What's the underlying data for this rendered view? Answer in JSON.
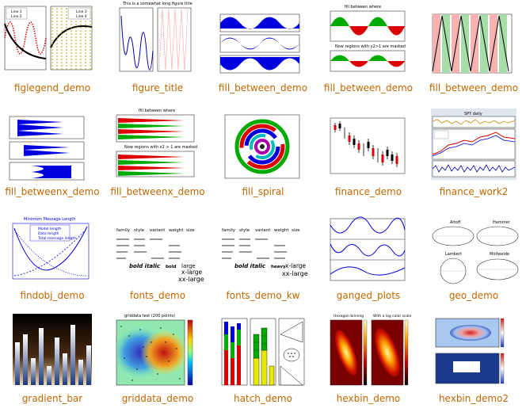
{
  "accent_color": "#c06800",
  "items": [
    {
      "caption": "figlegend_demo",
      "thumb_texts": [
        "Line 1",
        "Line 2",
        "Line 3",
        "Line 4"
      ]
    },
    {
      "caption": "figure_title",
      "thumb_texts": [
        "This is a somewhat long figure title"
      ]
    },
    {
      "caption": "fill_between_demo",
      "thumb_texts": []
    },
    {
      "caption": "fill_between_demo",
      "thumb_texts": [
        "fill between where",
        "Now regions with y2>1 are masked"
      ]
    },
    {
      "caption": "fill_between_demo",
      "thumb_texts": []
    },
    {
      "caption": "fill_betweenx_demo",
      "thumb_texts": []
    },
    {
      "caption": "fill_betweenx_demo",
      "thumb_texts": [
        "fill between where",
        "Now regions with x2 > 1 are masked"
      ]
    },
    {
      "caption": "fill_spiral",
      "thumb_texts": []
    },
    {
      "caption": "finance_demo",
      "thumb_texts": []
    },
    {
      "caption": "finance_work2",
      "thumb_texts": [
        "SPY daily"
      ]
    },
    {
      "caption": "findobj_demo",
      "thumb_texts": [
        "Minimum Message Length",
        "Model length",
        "Data length",
        "Total message length"
      ]
    },
    {
      "caption": "fonts_demo",
      "thumb_texts": [
        "family",
        "style",
        "variant",
        "weight",
        "size",
        "bold italic",
        "bold",
        "large",
        "x-large",
        "xx-large"
      ]
    },
    {
      "caption": "fonts_demo_kw",
      "thumb_texts": [
        "family",
        "style",
        "variant",
        "weight",
        "size",
        "bold italic",
        "heavy",
        "x-large",
        "xx-large"
      ]
    },
    {
      "caption": "ganged_plots",
      "thumb_texts": []
    },
    {
      "caption": "geo_demo",
      "thumb_texts": [
        "Aitoff",
        "Hammer",
        "Lambert",
        "Mollweide"
      ]
    },
    {
      "caption": "gradient_bar",
      "thumb_texts": []
    },
    {
      "caption": "griddata_demo",
      "thumb_texts": [
        "griddata test (200 points)"
      ]
    },
    {
      "caption": "hatch_demo",
      "thumb_texts": []
    },
    {
      "caption": "hexbin_demo",
      "thumb_texts": [
        "Hexagon binning",
        "With a log color scale"
      ]
    },
    {
      "caption": "hexbin_demo2",
      "thumb_texts": []
    }
  ]
}
